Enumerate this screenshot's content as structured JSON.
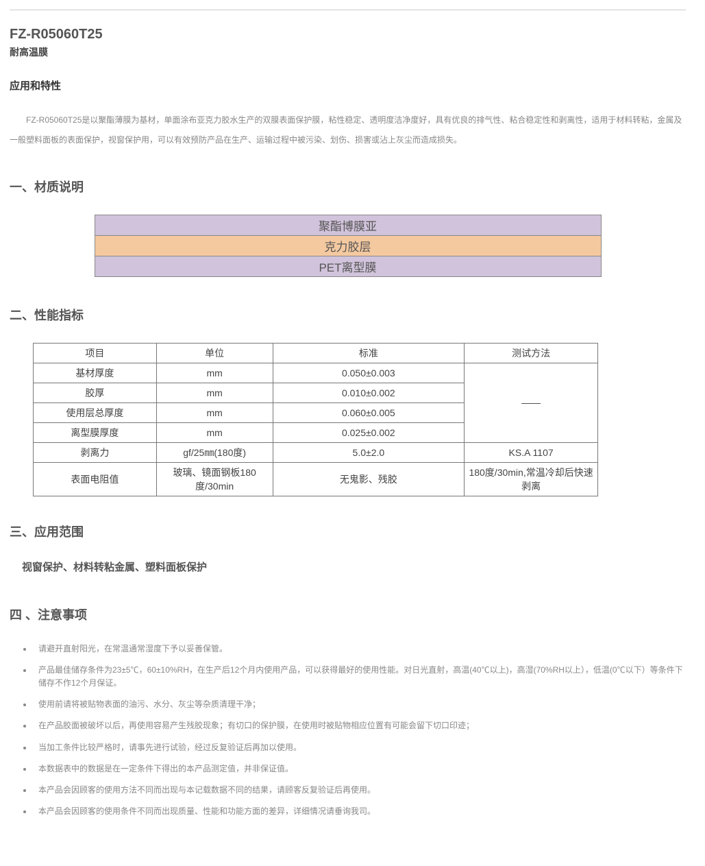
{
  "header": {
    "product_code": "FZ-R05060T25",
    "subtitle": "耐高温膜"
  },
  "app": {
    "heading": "应用和特性",
    "paragraph": "FZ-R05060T25是以聚酯薄膜为基材，单面涂布亚克力胶水生产的双膜表面保护膜，粘性稳定、透明度洁净度好，具有优良的排气性、粘合稳定性和剥离性，适用于材料转粘，金属及一般塑料面板的表面保护，视窗保护用，可以有效预防产品在生产、运输过程中被污染、划伤、损害或沾上灰尘而造成损失。"
  },
  "material": {
    "heading": "一、材质说明",
    "layers": [
      {
        "label": "聚酯博膜亚",
        "bg": "#d1c3db"
      },
      {
        "label": "克力胶层",
        "bg": "#f4c9a0"
      },
      {
        "label": "PET离型膜",
        "bg": "#d1c3db"
      }
    ]
  },
  "performance": {
    "heading": "二、性能指标",
    "columns": [
      "项目",
      "单位",
      "标准",
      "测试方法"
    ],
    "rows": [
      {
        "item": "基材厚度",
        "unit": "mm",
        "std": "0.050±0.003",
        "method": null
      },
      {
        "item": "胶厚",
        "unit": "mm",
        "std": "0.010±0.002",
        "method": null
      },
      {
        "item": "使用层总厚度",
        "unit": "mm",
        "std": "0.060±0.005",
        "method": null
      },
      {
        "item": "离型膜厚度",
        "unit": "mm",
        "std": "0.025±0.002",
        "method": null
      },
      {
        "item": "剥离力",
        "unit": "gf/25㎜(180度)",
        "std": "5.0±2.0",
        "method": "KS.A 1107"
      },
      {
        "item": "表面电阻值",
        "unit": "玻璃、镜面钢板180度/30min",
        "std": "无鬼影、残胶",
        "method": "180度/30min,常温冷却后快速剥离"
      }
    ],
    "merged_method_placeholder": "——"
  },
  "scope": {
    "heading": "三、应用范围",
    "text": "视窗保护、材料转粘金属、塑料面板保护"
  },
  "notes": {
    "heading": "四 、注意事项",
    "items": [
      "请避开直射阳光，在常温通常湿度下予以妥善保管。",
      "产品最佳储存条件为23±5℃，60±10%RH，在生产后12个月内使用产品，可以获得最好的使用性能。对日光直射，高温(40℃以上)，高湿(70%RH以上），低温(0℃以下）等条件下储存不作12个月保证。",
      "使用前请将被贴物表面的油污、水分、灰尘等杂质清理干净；",
      "在产品胶面被破坏以后，再使用容易产生残胶现象；有切口的保护膜，在使用时被贴物相应位置有可能会留下切口印迹；",
      "当加工条件比较严格时，请事先进行试验，经过反复验证后再加以使用。",
      "本数据表中的数据是在一定条件下得出的本产品测定值，并非保证值。",
      "本产品会因顾客的使用方法不同而出现与本记载数据不同的结果，请顾客反复验证后再使用。",
      "本产品会因顾客的使用条件不同而出现质量、性能和功能方面的差异，详细情况请垂询我司。"
    ]
  },
  "style": {
    "body_text_color": "#888888",
    "heading_color": "#555555",
    "border_color": "#777777"
  }
}
